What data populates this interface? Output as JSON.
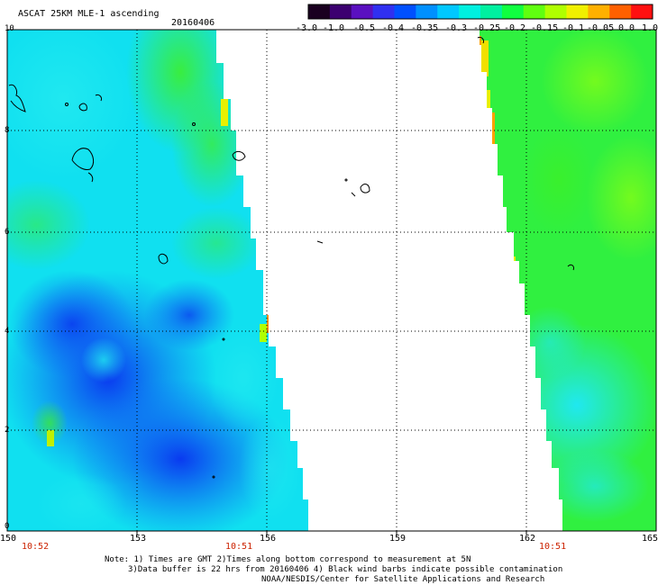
{
  "header": {
    "title": "ASCAT 25KM MLE-1 ascending",
    "date": "20160406"
  },
  "colorbar": {
    "colors": [
      "#1a0020",
      "#3c0070",
      "#5a10c0",
      "#3030f0",
      "#0050ff",
      "#0090ff",
      "#00c8ff",
      "#00f0e0",
      "#00f0a0",
      "#10ff40",
      "#60ff10",
      "#b0ff00",
      "#f0f000",
      "#ffb000",
      "#ff6000",
      "#ff1010"
    ],
    "labels": [
      "-3.0",
      "-1.0",
      "-0.5",
      "-0.4",
      "-0.35",
      "-0.3",
      "-0.25",
      "-0.2",
      "-0.15",
      "-0.1",
      "-0.05",
      "0.0",
      "1.0"
    ]
  },
  "map": {
    "lat_labels": [
      "10",
      "8",
      "6",
      "4",
      "2",
      "0"
    ],
    "lon_labels": [
      "150",
      "153",
      "156",
      "159",
      "162",
      "165"
    ],
    "time_labels": [
      "10:52",
      "10:51",
      "10:51"
    ]
  },
  "notes": {
    "line1": "Note: 1) Times are GMT 2)Times along bottom correspond to measurement at 5N",
    "line2": "3)Data buffer is 22 hrs from 20160406 4) Black wind barbs indicate possible contamination",
    "line3": "NOAA/NESDIS/Center for Satellite Applications and Research"
  }
}
